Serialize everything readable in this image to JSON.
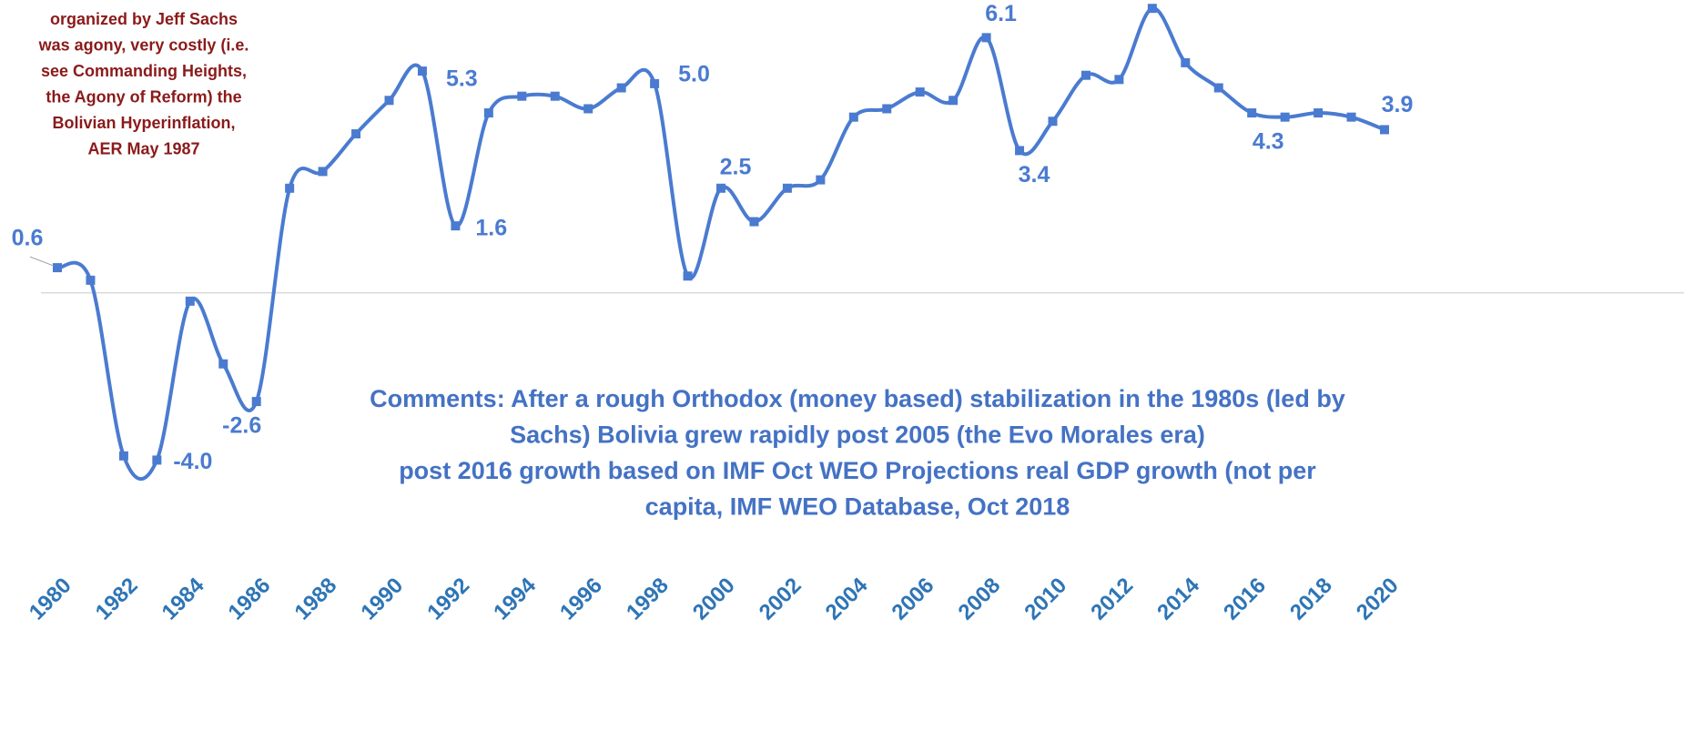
{
  "chart_data": {
    "type": "line",
    "annotation": [
      "organized by Jeff Sachs",
      "was agony, very costly (i.e.",
      "see Commanding Heights,",
      "the Agony of Reform) the",
      "Bolivian Hyperinflation,",
      "AER May 1987"
    ],
    "comments": [
      "Comments: After a rough Orthodox (money based) stabilization in the 1980s (led by",
      "Sachs) Bolivia grew rapidly post 2005 (the Evo Morales era)",
      "post 2016 growth based on IMF Oct WEO Projections real GDP growth (not per",
      "capita, IMF WEO Database, Oct 2018"
    ],
    "x": [
      1980,
      1981,
      1982,
      1983,
      1984,
      1985,
      1986,
      1987,
      1988,
      1989,
      1990,
      1991,
      1992,
      1993,
      1994,
      1995,
      1996,
      1997,
      1998,
      1999,
      2000,
      2001,
      2002,
      2003,
      2004,
      2005,
      2006,
      2007,
      2008,
      2009,
      2010,
      2011,
      2012,
      2013,
      2014,
      2015,
      2016,
      2017,
      2018,
      2019,
      2020
    ],
    "series": [
      {
        "color": "#4a7bd0",
        "values": [
          0.6,
          0.3,
          -3.9,
          -4.0,
          -0.2,
          -1.7,
          -2.6,
          2.5,
          2.9,
          3.8,
          4.6,
          5.3,
          1.6,
          4.3,
          4.7,
          4.7,
          4.4,
          4.9,
          5.0,
          0.4,
          2.5,
          1.7,
          2.5,
          2.7,
          4.2,
          4.4,
          4.8,
          4.6,
          6.1,
          3.4,
          4.1,
          5.2,
          5.1,
          6.8,
          5.5,
          4.9,
          4.3,
          4.2,
          4.3,
          4.2,
          3.9
        ],
        "value_labels": [
          "0.6",
          null,
          null,
          "-4.0",
          null,
          null,
          "-2.6",
          null,
          null,
          null,
          null,
          "5.3",
          "1.6",
          null,
          null,
          null,
          null,
          null,
          "5.0",
          null,
          "2.5",
          null,
          null,
          null,
          null,
          null,
          null,
          null,
          "6.1",
          "3.4",
          null,
          null,
          null,
          null,
          null,
          null,
          "4.3",
          null,
          null,
          null,
          "3.9"
        ]
      }
    ],
    "xlim": [
      1980,
      2020
    ],
    "xticks": [
      1980,
      1982,
      1984,
      1986,
      1988,
      1990,
      1992,
      1994,
      1996,
      1998,
      2000,
      2002,
      2004,
      2006,
      2008,
      2010,
      2012,
      2014,
      2016,
      2018,
      2020
    ],
    "ylim": [
      -4.6,
      7.0
    ]
  }
}
